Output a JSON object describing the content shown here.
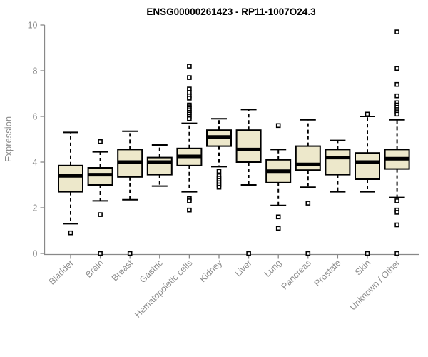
{
  "chart_data": {
    "type": "boxplot",
    "title": "ENSG00000261423 - RP11-1007O24.3",
    "ylabel": "Expression",
    "xlabel": "",
    "ylim": [
      0,
      10
    ],
    "yticks": [
      0,
      2,
      4,
      6,
      8,
      10
    ],
    "grid": false,
    "legend": "none",
    "box_fill_color": "#EDE8CB",
    "box_border_color": "#000000",
    "median_color": "#000000",
    "axis_color": "#888888",
    "label_color": "#8c8c8c",
    "categories": [
      "Bladder",
      "Brain",
      "Breast",
      "Gastric",
      "Hematopoietic cells",
      "Kidney",
      "Liver",
      "Lung",
      "Pancreas",
      "Prostate",
      "Skin",
      "Unknown / Other"
    ],
    "series": [
      {
        "category": "Bladder",
        "whisker_low": 1.3,
        "q1": 2.7,
        "median": 3.4,
        "q3": 3.85,
        "whisker_high": 5.3,
        "outliers": [
          0.9
        ]
      },
      {
        "category": "Brain",
        "whisker_low": 2.3,
        "q1": 3.0,
        "median": 3.45,
        "q3": 3.75,
        "whisker_high": 4.45,
        "outliers": [
          4.9,
          1.7,
          0
        ]
      },
      {
        "category": "Breast",
        "whisker_low": 2.35,
        "q1": 3.35,
        "median": 4.0,
        "q3": 4.55,
        "whisker_high": 5.35,
        "outliers": [
          0
        ]
      },
      {
        "category": "Gastric",
        "whisker_low": 2.95,
        "q1": 3.45,
        "median": 4.0,
        "q3": 4.2,
        "whisker_high": 4.75,
        "outliers": []
      },
      {
        "category": "Hematopoietic cells",
        "whisker_low": 2.7,
        "q1": 3.85,
        "median": 4.25,
        "q3": 4.6,
        "whisker_high": 5.7,
        "outliers": [
          8.2,
          7.7,
          7.2,
          7.05,
          6.9,
          6.8,
          6.5,
          6.42,
          6.34,
          6.26,
          6.18,
          6.1,
          6.0,
          5.9,
          2.4,
          2.3,
          1.9
        ]
      },
      {
        "category": "Kidney",
        "whisker_low": 3.8,
        "q1": 4.7,
        "median": 5.1,
        "q3": 5.4,
        "whisker_high": 5.9,
        "outliers": [
          3.6,
          3.4,
          3.3,
          3.2,
          3.1,
          3.0,
          2.9
        ]
      },
      {
        "category": "Liver",
        "whisker_low": 3.0,
        "q1": 4.0,
        "median": 4.55,
        "q3": 5.4,
        "whisker_high": 6.3,
        "outliers": [
          0
        ]
      },
      {
        "category": "Lung",
        "whisker_low": 2.1,
        "q1": 3.1,
        "median": 3.6,
        "q3": 4.1,
        "whisker_high": 4.55,
        "outliers": [
          5.6,
          1.6,
          1.1
        ]
      },
      {
        "category": "Pancreas",
        "whisker_low": 2.9,
        "q1": 3.65,
        "median": 3.9,
        "q3": 4.7,
        "whisker_high": 5.85,
        "outliers": [
          2.2,
          0
        ]
      },
      {
        "category": "Prostate",
        "whisker_low": 2.7,
        "q1": 3.45,
        "median": 4.2,
        "q3": 4.55,
        "whisker_high": 4.95,
        "outliers": []
      },
      {
        "category": "Skin",
        "whisker_low": 2.7,
        "q1": 3.25,
        "median": 4.0,
        "q3": 4.4,
        "whisker_high": 6.0,
        "outliers": [
          6.1,
          0
        ]
      },
      {
        "category": "Unknown / Other",
        "whisker_low": 2.45,
        "q1": 3.7,
        "median": 4.15,
        "q3": 4.55,
        "whisker_high": 5.85,
        "outliers": [
          9.7,
          8.1,
          7.4,
          6.9,
          6.6,
          6.5,
          6.4,
          6.3,
          6.2,
          6.1,
          2.3,
          1.9,
          1.8,
          1.25,
          0
        ]
      }
    ]
  }
}
